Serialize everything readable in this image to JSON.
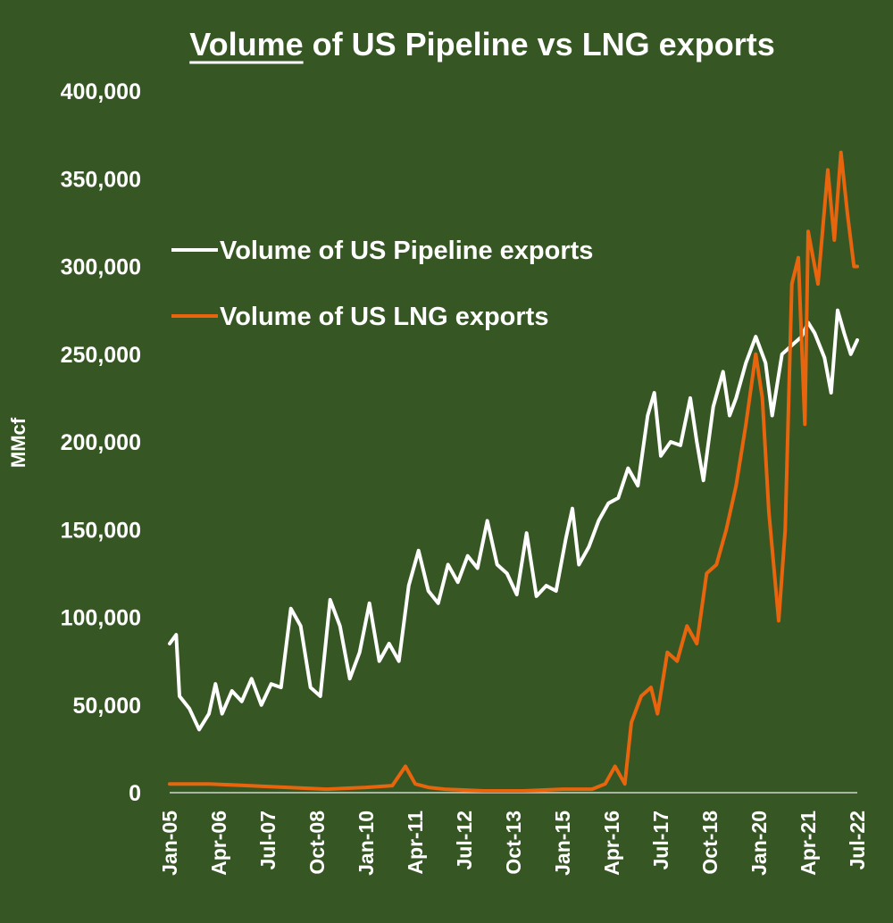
{
  "chart_data": {
    "type": "line",
    "title": "Volume of US Pipeline vs LNG exports",
    "title_underlined_word": "Volume",
    "ylabel": "MMcf",
    "xlabel": "",
    "ylim": [
      0,
      400000
    ],
    "yticks": [
      0,
      50000,
      100000,
      150000,
      200000,
      250000,
      300000,
      350000,
      400000
    ],
    "ytick_labels": [
      "0",
      "50,000",
      "100,000",
      "150,000",
      "200,000",
      "250,000",
      "300,000",
      "350,000",
      "400,000"
    ],
    "xlim": [
      "2005-01",
      "2022-07"
    ],
    "xtick_labels": [
      "Jan-05",
      "Apr-06",
      "Jul-07",
      "Oct-08",
      "Jan-10",
      "Apr-11",
      "Jul-12",
      "Oct-13",
      "Jan-15",
      "Apr-16",
      "Jul-17",
      "Oct-18",
      "Jan-20",
      "Apr-21",
      "Jul-22"
    ],
    "legend_position": "upper-left",
    "grid": false,
    "series": [
      {
        "name": "Volume of US Pipeline exports",
        "color": "#ffffff",
        "points": [
          [
            "2005-01",
            85000
          ],
          [
            "2005-03",
            90000
          ],
          [
            "2005-04",
            55000
          ],
          [
            "2005-07",
            48000
          ],
          [
            "2005-10",
            36000
          ],
          [
            "2006-01",
            45000
          ],
          [
            "2006-03",
            62000
          ],
          [
            "2006-05",
            45000
          ],
          [
            "2006-08",
            58000
          ],
          [
            "2006-11",
            52000
          ],
          [
            "2007-02",
            65000
          ],
          [
            "2007-05",
            50000
          ],
          [
            "2007-08",
            62000
          ],
          [
            "2007-11",
            60000
          ],
          [
            "2008-02",
            105000
          ],
          [
            "2008-05",
            95000
          ],
          [
            "2008-08",
            60000
          ],
          [
            "2008-11",
            55000
          ],
          [
            "2009-02",
            110000
          ],
          [
            "2009-05",
            95000
          ],
          [
            "2009-08",
            65000
          ],
          [
            "2009-11",
            80000
          ],
          [
            "2010-02",
            108000
          ],
          [
            "2010-05",
            75000
          ],
          [
            "2010-08",
            85000
          ],
          [
            "2010-11",
            75000
          ],
          [
            "2011-02",
            118000
          ],
          [
            "2011-05",
            138000
          ],
          [
            "2011-08",
            115000
          ],
          [
            "2011-11",
            108000
          ],
          [
            "2012-02",
            130000
          ],
          [
            "2012-05",
            120000
          ],
          [
            "2012-08",
            135000
          ],
          [
            "2012-11",
            128000
          ],
          [
            "2013-02",
            155000
          ],
          [
            "2013-05",
            130000
          ],
          [
            "2013-08",
            125000
          ],
          [
            "2013-11",
            113000
          ],
          [
            "2014-02",
            148000
          ],
          [
            "2014-05",
            112000
          ],
          [
            "2014-08",
            118000
          ],
          [
            "2014-11",
            115000
          ],
          [
            "2015-02",
            145000
          ],
          [
            "2015-04",
            162000
          ],
          [
            "2015-06",
            130000
          ],
          [
            "2015-09",
            140000
          ],
          [
            "2015-12",
            155000
          ],
          [
            "2016-03",
            165000
          ],
          [
            "2016-06",
            168000
          ],
          [
            "2016-09",
            185000
          ],
          [
            "2016-12",
            175000
          ],
          [
            "2017-03",
            215000
          ],
          [
            "2017-05",
            228000
          ],
          [
            "2017-07",
            192000
          ],
          [
            "2017-10",
            200000
          ],
          [
            "2018-01",
            198000
          ],
          [
            "2018-04",
            225000
          ],
          [
            "2018-06",
            200000
          ],
          [
            "2018-08",
            178000
          ],
          [
            "2018-11",
            220000
          ],
          [
            "2019-02",
            240000
          ],
          [
            "2019-04",
            215000
          ],
          [
            "2019-06",
            225000
          ],
          [
            "2019-09",
            245000
          ],
          [
            "2019-12",
            260000
          ],
          [
            "2020-03",
            245000
          ],
          [
            "2020-05",
            215000
          ],
          [
            "2020-08",
            250000
          ],
          [
            "2020-11",
            255000
          ],
          [
            "2021-02",
            260000
          ],
          [
            "2021-04",
            268000
          ],
          [
            "2021-06",
            262000
          ],
          [
            "2021-09",
            248000
          ],
          [
            "2021-11",
            228000
          ],
          [
            "2022-01",
            275000
          ],
          [
            "2022-03",
            262000
          ],
          [
            "2022-05",
            250000
          ],
          [
            "2022-07",
            258000
          ]
        ]
      },
      {
        "name": "Volume of US LNG exports",
        "color": "#e8650e",
        "points": [
          [
            "2005-01",
            5000
          ],
          [
            "2006-01",
            5000
          ],
          [
            "2007-01",
            4000
          ],
          [
            "2008-01",
            3000
          ],
          [
            "2009-01",
            2000
          ],
          [
            "2010-01",
            3000
          ],
          [
            "2010-09",
            4000
          ],
          [
            "2011-01",
            15000
          ],
          [
            "2011-04",
            5000
          ],
          [
            "2011-08",
            3000
          ],
          [
            "2012-01",
            2000
          ],
          [
            "2013-01",
            1000
          ],
          [
            "2014-01",
            1000
          ],
          [
            "2015-01",
            2000
          ],
          [
            "2015-10",
            2000
          ],
          [
            "2016-02",
            5000
          ],
          [
            "2016-05",
            15000
          ],
          [
            "2016-08",
            5000
          ],
          [
            "2016-10",
            40000
          ],
          [
            "2017-01",
            55000
          ],
          [
            "2017-04",
            60000
          ],
          [
            "2017-06",
            45000
          ],
          [
            "2017-09",
            80000
          ],
          [
            "2017-12",
            75000
          ],
          [
            "2018-03",
            95000
          ],
          [
            "2018-06",
            85000
          ],
          [
            "2018-09",
            125000
          ],
          [
            "2018-12",
            130000
          ],
          [
            "2019-03",
            150000
          ],
          [
            "2019-06",
            175000
          ],
          [
            "2019-09",
            210000
          ],
          [
            "2019-12",
            250000
          ],
          [
            "2020-02",
            225000
          ],
          [
            "2020-04",
            160000
          ],
          [
            "2020-07",
            98000
          ],
          [
            "2020-09",
            150000
          ],
          [
            "2020-11",
            290000
          ],
          [
            "2021-01",
            305000
          ],
          [
            "2021-03",
            210000
          ],
          [
            "2021-04",
            320000
          ],
          [
            "2021-07",
            290000
          ],
          [
            "2021-10",
            355000
          ],
          [
            "2021-12",
            315000
          ],
          [
            "2022-02",
            365000
          ],
          [
            "2022-04",
            330000
          ],
          [
            "2022-06",
            300000
          ],
          [
            "2022-07",
            300000
          ]
        ]
      }
    ]
  }
}
